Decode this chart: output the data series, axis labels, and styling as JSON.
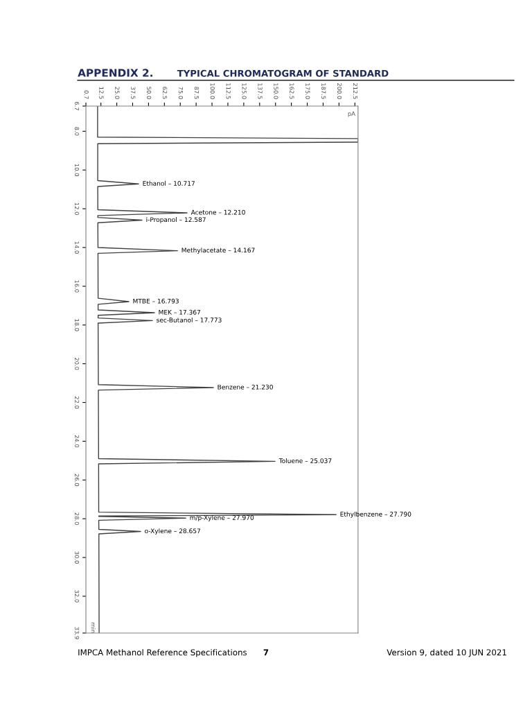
{
  "chart_data": {
    "type": "line",
    "orientation": "horizontal",
    "title": "APPENDIX 2.",
    "subtitle": "TYPICAL CHROMATOGRAM OF STANDARD",
    "xlabel": "pA",
    "ylabel": "min",
    "series": [
      {
        "color": "#404040",
        "x": [
          6.7,
          8.3,
          8.38,
          8.56,
          8.64,
          10.55,
          10.717,
          10.85,
          12.05,
          12.21,
          12.35,
          12.45,
          12.587,
          12.72,
          14.0,
          14.167,
          14.3,
          16.62,
          16.793,
          16.93,
          17.22,
          17.367,
          17.5,
          17.64,
          17.773,
          17.9,
          21.08,
          21.23,
          21.36,
          24.9,
          25.037,
          25.17,
          27.66,
          27.79,
          27.86,
          27.88,
          27.97,
          28.08,
          28.55,
          28.657,
          28.78,
          33.9
        ],
        "values": [
          9.9,
          9.9,
          215,
          215,
          10.0,
          10.0,
          42.2,
          10.0,
          10.1,
          80.4,
          10.1,
          10.1,
          44.9,
          10.1,
          10.2,
          72.8,
          10.2,
          10.3,
          34.5,
          10.3,
          10.3,
          54.7,
          10.3,
          10.3,
          53.1,
          10.3,
          10.5,
          101.1,
          10.5,
          10.7,
          149.7,
          10.7,
          10.8,
          197.7,
          10.8,
          10.8,
          79.3,
          10.8,
          10.9,
          43.8,
          10.9,
          11.1
        ]
      }
    ],
    "xlim": [
      0.7,
      215
    ],
    "xticks": [
      0.7,
      12.5,
      {
        "value": 25,
        "label": "25.0"
      },
      37.5,
      {
        "value": 50,
        "label": "50.0"
      },
      62.5,
      {
        "value": 75,
        "label": "75.0"
      },
      87.5,
      {
        "value": 100,
        "label": "100.0"
      },
      112.5,
      {
        "value": 125,
        "label": "125.0"
      },
      137.5,
      {
        "value": 150,
        "label": "150.0"
      },
      162.5,
      {
        "value": 175,
        "label": "175.0"
      },
      187.5,
      {
        "value": 200,
        "label": "200.0"
      },
      212.5
    ],
    "ylim": [
      33.9,
      6.7
    ],
    "yticks": [
      6.7,
      {
        "value": 8,
        "label": "8.0"
      },
      {
        "value": 10,
        "label": "10.0"
      },
      {
        "value": 12,
        "label": "12.0"
      },
      {
        "value": 14,
        "label": "14.0"
      },
      {
        "value": 16,
        "label": "16.0"
      },
      {
        "value": 18,
        "label": "18.0"
      },
      {
        "value": 20,
        "label": "20.0"
      },
      {
        "value": 22,
        "label": "22.0"
      },
      {
        "value": 24,
        "label": "24.0"
      },
      {
        "value": 26,
        "label": "26.0"
      },
      {
        "value": 28,
        "label": "28.0"
      },
      {
        "value": 30,
        "label": "30.0"
      },
      {
        "value": 32,
        "label": "32.0"
      },
      33.9
    ],
    "grid": false,
    "marker": "none",
    "line_style": "solid",
    "annotations": [
      {
        "text": "Ethanol – 10.717",
        "x": 42.2,
        "y": 10.717
      },
      {
        "text": "Acetone – 12.210",
        "x": 80.4,
        "y": 12.21
      },
      {
        "text": "i-Propanol – 12.587",
        "x": 44.9,
        "y": 12.587
      },
      {
        "text": "Methylacetate – 14.167",
        "x": 72.8,
        "y": 14.167
      },
      {
        "text": "MTBE – 16.793",
        "x": 34.5,
        "y": 16.793
      },
      {
        "text": "MEK – 17.367",
        "x": 54.7,
        "y": 17.367
      },
      {
        "text": "sec-Butanol – 17.773",
        "x": 53.1,
        "y": 17.773
      },
      {
        "text": "Benzene – 21.230",
        "x": 101.1,
        "y": 21.23
      },
      {
        "text": "Toluene – 25.037",
        "x": 149.7,
        "y": 25.037
      },
      {
        "text": "Ethylbenzene – 27.790",
        "x": 197.7,
        "y": 27.79
      },
      {
        "text": "m/p-Xylene – 27.970",
        "x": 79.3,
        "y": 27.97
      },
      {
        "text": "o-Xylene – 28.657",
        "x": 43.8,
        "y": 28.657
      },
      "IMPCA Methanol Reference Specifications",
      "7",
      "Version 9, dated 10 JUN 2021"
    ]
  }
}
